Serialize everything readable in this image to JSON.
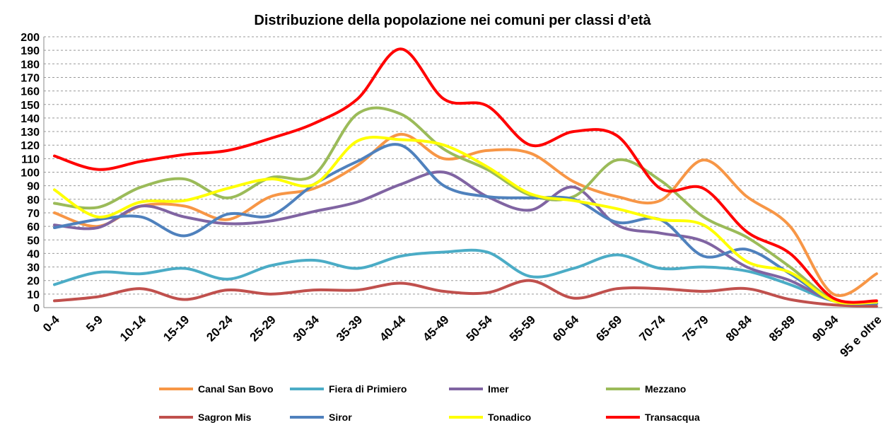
{
  "chart_data": {
    "type": "line",
    "title": "Distribuzione della popolazione nei comuni per classi d’età",
    "categories": [
      "0-4",
      "5-9",
      "10-14",
      "15-19",
      "20-24",
      "25-29",
      "30-34",
      "35-39",
      "40-44",
      "45-49",
      "50-54",
      "55-59",
      "60-64",
      "65-69",
      "70-74",
      "75-79",
      "80-84",
      "85-89",
      "90-94",
      "95 e oltre"
    ],
    "series": [
      {
        "name": "Canal San Bovo",
        "color": "#f79646",
        "values": [
          70,
          60,
          75,
          75,
          65,
          82,
          88,
          105,
          128,
          110,
          116,
          114,
          93,
          82,
          79,
          109,
          82,
          60,
          10,
          25
        ]
      },
      {
        "name": "Fiera di Primiero",
        "color": "#4bacc6",
        "values": [
          17,
          26,
          25,
          29,
          21,
          31,
          35,
          29,
          38,
          41,
          41,
          23,
          29,
          39,
          29,
          30,
          27,
          17,
          5,
          3
        ]
      },
      {
        "name": "Imer",
        "color": "#8064a2",
        "values": [
          61,
          59,
          75,
          67,
          62,
          64,
          71,
          78,
          91,
          100,
          82,
          72,
          89,
          61,
          55,
          49,
          30,
          20,
          5,
          3
        ]
      },
      {
        "name": "Mezzano",
        "color": "#9bbb59",
        "values": [
          77,
          74,
          89,
          95,
          81,
          96,
          98,
          143,
          143,
          117,
          102,
          83,
          82,
          109,
          94,
          67,
          52,
          30,
          6,
          3
        ]
      },
      {
        "name": "Sagron Mis",
        "color": "#c0504d",
        "values": [
          5,
          8,
          14,
          6,
          13,
          10,
          13,
          13,
          18,
          12,
          11,
          20,
          7,
          14,
          14,
          12,
          14,
          6,
          2,
          1
        ]
      },
      {
        "name": "Siror",
        "color": "#4f81bd",
        "values": [
          59,
          65,
          67,
          53,
          69,
          68,
          91,
          108,
          120,
          90,
          82,
          81,
          80,
          63,
          65,
          38,
          43,
          25,
          5,
          3
        ]
      },
      {
        "name": "Tonadico",
        "color": "#ffff00",
        "values": [
          87,
          67,
          78,
          79,
          88,
          95,
          91,
          123,
          124,
          120,
          104,
          84,
          79,
          73,
          65,
          61,
          34,
          26,
          5,
          4
        ]
      },
      {
        "name": "Transacqua",
        "color": "#ff0000",
        "values": [
          112,
          102,
          108,
          113,
          116,
          125,
          136,
          154,
          191,
          154,
          149,
          120,
          130,
          127,
          88,
          88,
          56,
          40,
          7,
          5
        ]
      }
    ],
    "ylim": [
      0,
      200
    ],
    "yticks": [
      0,
      10,
      20,
      30,
      40,
      50,
      60,
      70,
      80,
      90,
      100,
      110,
      120,
      130,
      140,
      150,
      160,
      170,
      180,
      190,
      200
    ],
    "grid": true,
    "legend": "bottom"
  }
}
